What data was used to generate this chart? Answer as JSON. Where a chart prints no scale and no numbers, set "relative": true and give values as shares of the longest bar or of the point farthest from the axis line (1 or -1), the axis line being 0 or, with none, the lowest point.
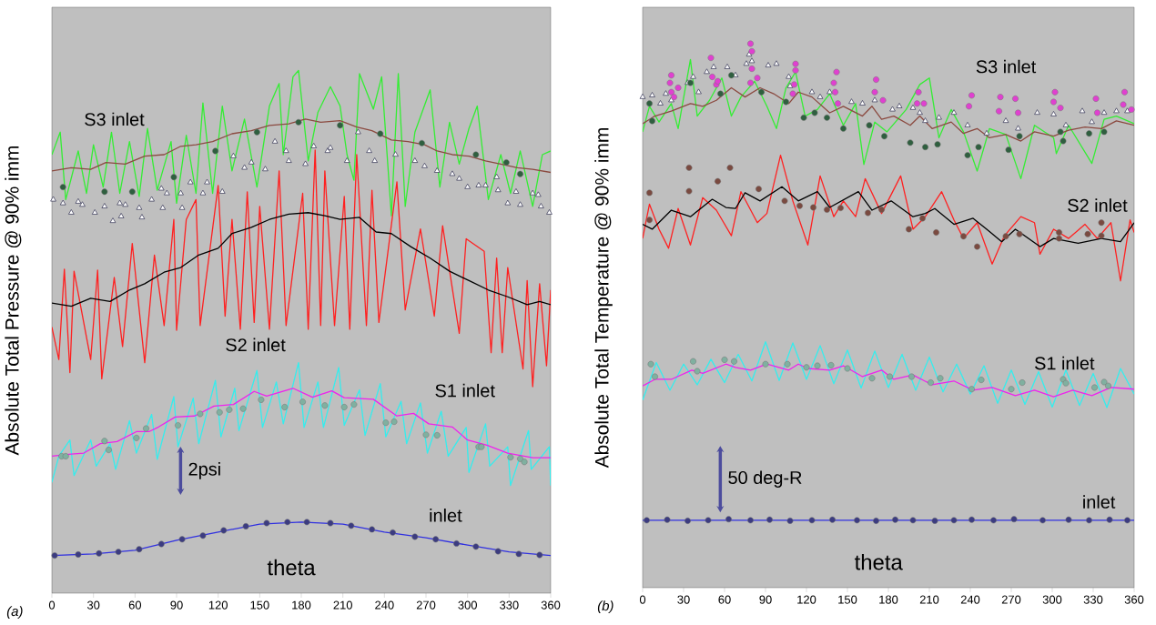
{
  "chart_data": [
    {
      "type": "line",
      "title": "(a)",
      "xlabel": "theta",
      "ylabel": "Absolute Total Pressure  @ 90% imm",
      "relative": true,
      "xlim": [
        0,
        360
      ],
      "xticks": [
        0,
        30,
        60,
        90,
        120,
        150,
        180,
        210,
        240,
        270,
        300,
        330,
        360
      ],
      "annotations": [
        "S3 inlet",
        "S2 inlet",
        "S1 inlet",
        "inlet",
        "2psi"
      ],
      "series": [
        {
          "color": "#33ee33",
          "x": [
            0,
            6,
            10,
            19,
            25,
            30,
            37,
            43,
            49,
            56,
            63,
            69,
            76,
            86,
            90,
            97,
            104,
            109,
            116,
            123,
            130,
            139,
            148,
            157,
            164,
            167,
            174,
            178,
            185,
            192,
            201,
            208,
            213,
            218,
            222,
            232,
            238,
            245,
            250,
            255,
            262,
            273,
            280,
            287,
            294,
            301,
            307,
            315,
            324,
            331,
            338,
            347,
            354,
            360
          ],
          "values": [
            0.839,
            0.882,
            0.753,
            0.846,
            0.765,
            0.858,
            0.777,
            0.882,
            0.765,
            0.864,
            0.759,
            0.889,
            0.771,
            0.864,
            0.746,
            0.876,
            0.765,
            0.938,
            0.765,
            0.932,
            0.808,
            0.907,
            0.777,
            0.932,
            0.975,
            0.839,
            0.988,
            1.0,
            0.827,
            0.92,
            0.969,
            0.932,
            0.839,
            0.79,
            0.994,
            0.926,
            0.988,
            0.722,
            0.994,
            0.74,
            0.882,
            0.963,
            0.777,
            0.901,
            0.821,
            0.889,
            0.932,
            0.753,
            0.839,
            0.765,
            0.846,
            0.74,
            0.839,
            0.846
          ]
        },
        {
          "color": "#8b4a40",
          "x": [
            0,
            14,
            28,
            39,
            53,
            67,
            81,
            93,
            104,
            116,
            130,
            144,
            157,
            171,
            183,
            194,
            208,
            220,
            231,
            245,
            257,
            269,
            278,
            289,
            301,
            313,
            324,
            336,
            347,
            360
          ],
          "values": [
            0.808,
            0.814,
            0.811,
            0.824,
            0.821,
            0.836,
            0.839,
            0.855,
            0.858,
            0.864,
            0.879,
            0.885,
            0.895,
            0.898,
            0.907,
            0.901,
            0.904,
            0.892,
            0.885,
            0.867,
            0.864,
            0.858,
            0.846,
            0.839,
            0.836,
            0.827,
            0.821,
            0.814,
            0.811,
            0.805
          ]
        },
        {
          "type": "scatter",
          "marker": "triangle",
          "color": "#303050",
          "x": [
            1,
            8,
            14,
            19,
            22,
            31,
            38,
            44,
            49,
            50,
            53,
            63,
            65,
            72,
            79,
            80,
            83,
            93,
            94,
            100,
            109,
            112,
            123,
            131,
            139,
            144,
            154,
            161,
            169,
            171,
            183,
            189,
            199,
            201,
            213,
            221,
            229,
            233,
            248,
            262,
            269,
            278,
            289,
            294,
            300,
            308,
            313,
            321,
            322,
            329,
            335,
            338,
            347,
            351,
            353,
            359
          ],
          "values": [
            0.753,
            0.746,
            0.728,
            0.749,
            0.743,
            0.728,
            0.74,
            0.712,
            0.746,
            0.721,
            0.743,
            0.737,
            0.719,
            0.753,
            0.774,
            0.737,
            0.765,
            0.765,
            0.737,
            0.786,
            0.765,
            0.786,
            0.768,
            0.836,
            0.814,
            0.824,
            0.811,
            0.864,
            0.846,
            0.827,
            0.821,
            0.855,
            0.846,
            0.852,
            0.827,
            0.882,
            0.846,
            0.827,
            0.839,
            0.827,
            0.817,
            0.808,
            0.802,
            0.793,
            0.777,
            0.78,
            0.78,
            0.796,
            0.771,
            0.746,
            0.768,
            0.743,
            0.765,
            0.762,
            0.74,
            0.728
          ]
        },
        {
          "type": "scatter",
          "marker": "circle",
          "color": "#2f5f3f",
          "x": [
            8,
            38,
            58,
            88,
            118,
            148,
            178,
            208,
            237,
            267,
            306,
            328,
            338
          ],
          "values": [
            0.777,
            0.768,
            0.768,
            0.796,
            0.846,
            0.882,
            0.901,
            0.895,
            0.879,
            0.861,
            0.839,
            0.824,
            0.802
          ]
        },
        {
          "color": "#ff2020",
          "x": [
            0,
            5,
            9,
            13,
            16,
            28,
            33,
            36,
            45,
            51,
            58,
            67,
            74,
            81,
            88,
            90,
            97,
            104,
            107,
            120,
            125,
            130,
            136,
            141,
            146,
            150,
            157,
            164,
            169,
            181,
            185,
            190,
            194,
            197,
            204,
            211,
            215,
            220,
            227,
            231,
            236,
            249,
            255,
            266,
            276,
            282,
            294,
            299,
            312,
            317,
            321,
            325,
            329,
            340,
            343,
            347,
            352,
            357,
            360
          ],
          "values": [
            0.509,
            0.447,
            0.62,
            0.422,
            0.616,
            0.447,
            0.618,
            0.41,
            0.604,
            0.472,
            0.669,
            0.441,
            0.647,
            0.512,
            0.715,
            0.503,
            0.715,
            0.753,
            0.512,
            0.78,
            0.53,
            0.715,
            0.505,
            0.768,
            0.518,
            0.74,
            0.505,
            0.808,
            0.512,
            0.765,
            0.505,
            0.848,
            0.512,
            0.808,
            0.512,
            0.759,
            0.505,
            0.839,
            0.512,
            0.771,
            0.518,
            0.787,
            0.542,
            0.697,
            0.53,
            0.703,
            0.497,
            0.678,
            0.654,
            0.46,
            0.641,
            0.46,
            0.623,
            0.429,
            0.598,
            0.395,
            0.592,
            0.435,
            0.58
          ]
        },
        {
          "color": "#000000",
          "x": [
            0,
            14,
            28,
            42,
            56,
            67,
            81,
            93,
            106,
            120,
            130,
            144,
            157,
            171,
            185,
            197,
            208,
            222,
            234,
            245,
            259,
            273,
            287,
            301,
            315,
            329,
            343,
            352,
            360
          ],
          "values": [
            0.555,
            0.549,
            0.564,
            0.558,
            0.58,
            0.592,
            0.614,
            0.623,
            0.647,
            0.66,
            0.688,
            0.7,
            0.715,
            0.725,
            0.728,
            0.722,
            0.715,
            0.719,
            0.691,
            0.688,
            0.663,
            0.641,
            0.616,
            0.598,
            0.58,
            0.567,
            0.552,
            0.558,
            0.552
          ]
        },
        {
          "color": "#33eeee",
          "x": [
            0,
            5,
            13,
            16,
            28,
            32,
            42,
            46,
            56,
            61,
            72,
            76,
            88,
            91,
            102,
            106,
            118,
            122,
            132,
            135,
            148,
            152,
            162,
            167,
            178,
            182,
            192,
            196,
            207,
            211,
            222,
            226,
            237,
            241,
            252,
            256,
            266,
            271,
            281,
            286,
            299,
            301,
            313,
            316,
            329,
            331,
            344,
            346,
            359,
            360
          ],
          "values": [
            0.212,
            0.262,
            0.293,
            0.225,
            0.293,
            0.243,
            0.286,
            0.237,
            0.33,
            0.268,
            0.342,
            0.256,
            0.376,
            0.28,
            0.373,
            0.286,
            0.407,
            0.299,
            0.392,
            0.311,
            0.426,
            0.317,
            0.404,
            0.324,
            0.441,
            0.317,
            0.404,
            0.317,
            0.432,
            0.321,
            0.389,
            0.302,
            0.401,
            0.299,
            0.367,
            0.286,
            0.364,
            0.268,
            0.348,
            0.262,
            0.317,
            0.231,
            0.324,
            0.243,
            0.28,
            0.206,
            0.311,
            0.237,
            0.28,
            0.206
          ]
        },
        {
          "color": "#ee22ee",
          "x": [
            0,
            14,
            23,
            35,
            47,
            61,
            70,
            77,
            89,
            103,
            117,
            131,
            146,
            155,
            174,
            188,
            202,
            211,
            232,
            249,
            261,
            272,
            289,
            300,
            314,
            329,
            347,
            360
          ],
          "values": [
            0.262,
            0.266,
            0.268,
            0.286,
            0.29,
            0.309,
            0.309,
            0.318,
            0.337,
            0.339,
            0.358,
            0.361,
            0.386,
            0.377,
            0.392,
            0.375,
            0.387,
            0.374,
            0.371,
            0.339,
            0.344,
            0.324,
            0.318,
            0.293,
            0.283,
            0.268,
            0.259,
            0.259
          ]
        },
        {
          "type": "scatter",
          "marker": "circle",
          "color": "#80b0a0",
          "x": [
            7,
            10,
            38,
            41,
            61,
            68,
            91,
            107,
            121,
            128,
            138,
            151,
            168,
            181,
            197,
            211,
            218,
            241,
            247,
            270,
            278,
            308,
            310,
            331,
            338,
            341
          ],
          "values": [
            0.262,
            0.262,
            0.291,
            0.274,
            0.297,
            0.315,
            0.321,
            0.343,
            0.346,
            0.351,
            0.353,
            0.37,
            0.356,
            0.366,
            0.359,
            0.356,
            0.361,
            0.326,
            0.328,
            0.303,
            0.302,
            0.28,
            0.28,
            0.26,
            0.257,
            0.251
          ]
        },
        {
          "color": "#3030e0",
          "x": [
            0,
            30,
            60,
            90,
            120,
            150,
            180,
            210,
            240,
            270,
            300,
            330,
            360
          ],
          "values": [
            0.072,
            0.075,
            0.082,
            0.101,
            0.117,
            0.132,
            0.136,
            0.132,
            0.117,
            0.106,
            0.092,
            0.079,
            0.072
          ]
        },
        {
          "type": "scatter",
          "marker": "circle",
          "color": "#3c3c80",
          "x": [
            2,
            19,
            34,
            48,
            63,
            79,
            94,
            109,
            124,
            140,
            155,
            170,
            184,
            201,
            216,
            231,
            246,
            262,
            277,
            292,
            306,
            322,
            337,
            352
          ],
          "values": [
            0.072,
            0.074,
            0.076,
            0.079,
            0.084,
            0.094,
            0.103,
            0.11,
            0.12,
            0.128,
            0.134,
            0.136,
            0.136,
            0.134,
            0.129,
            0.122,
            0.116,
            0.108,
            0.103,
            0.095,
            0.089,
            0.08,
            0.075,
            0.073
          ]
        }
      ]
    },
    {
      "type": "line",
      "title": "(b)",
      "xlabel": "theta",
      "ylabel": "Absolute Total Temperature  @ 90% imm",
      "relative": true,
      "xlim": [
        0,
        360
      ],
      "xticks": [
        0,
        30,
        60,
        90,
        120,
        150,
        180,
        210,
        240,
        270,
        300,
        330,
        360
      ],
      "annotations": [
        "S3 inlet",
        "S2 inlet",
        "S1 inlet",
        "inlet",
        "50 deg-R"
      ],
      "series": [
        {
          "color": "#33ee33",
          "x": [
            0,
            5,
            12,
            21,
            26,
            35,
            40,
            49,
            58,
            65,
            72,
            82,
            91,
            98,
            105,
            112,
            119,
            128,
            137,
            147,
            156,
            162,
            170,
            179,
            193,
            203,
            210,
            217,
            226,
            235,
            245,
            254,
            266,
            277,
            287,
            301,
            303,
            312,
            329,
            338,
            347,
            360
          ],
          "values": [
            0.838,
            0.885,
            0.856,
            0.89,
            0.844,
            0.971,
            0.867,
            0.896,
            0.937,
            0.867,
            0.902,
            0.931,
            0.885,
            0.844,
            0.919,
            0.948,
            0.867,
            0.879,
            0.908,
            0.85,
            0.89,
            0.778,
            0.856,
            0.838,
            0.879,
            0.925,
            0.937,
            0.827,
            0.879,
            0.838,
            0.766,
            0.844,
            0.833,
            0.752,
            0.85,
            0.827,
            0.798,
            0.85,
            0.78,
            0.861,
            0.867,
            0.853
          ]
        },
        {
          "color": "#8b4a40",
          "x": [
            0,
            9,
            21,
            35,
            44,
            54,
            65,
            75,
            86,
            96,
            107,
            114,
            124,
            137,
            147,
            161,
            168,
            175,
            184,
            196,
            203,
            212,
            226,
            235,
            245,
            254,
            266,
            277,
            287,
            301,
            312,
            324,
            336,
            347,
            360
          ],
          "values": [
            0.853,
            0.867,
            0.876,
            0.89,
            0.885,
            0.896,
            0.919,
            0.902,
            0.919,
            0.908,
            0.89,
            0.911,
            0.902,
            0.873,
            0.885,
            0.867,
            0.885,
            0.861,
            0.867,
            0.85,
            0.867,
            0.844,
            0.856,
            0.835,
            0.844,
            0.827,
            0.833,
            0.821,
            0.838,
            0.83,
            0.841,
            0.847,
            0.844,
            0.858,
            0.85
          ]
        },
        {
          "type": "scatter",
          "marker": "triangle",
          "color": "#303050",
          "x": [
            0,
            7,
            13,
            17,
            21,
            33,
            37,
            41,
            47,
            52,
            62,
            68,
            76,
            78,
            80,
            92,
            98,
            107,
            108,
            124,
            130,
            137,
            153,
            161,
            170,
            183,
            188,
            198,
            203,
            207,
            217,
            228,
            238,
            252,
            266,
            275,
            289,
            301,
            310,
            322,
            329,
            338,
            347,
            355
          ],
          "values": [
            0.902,
            0.905,
            0.89,
            0.908,
            0.896,
            0.928,
            0.939,
            0.911,
            0.948,
            0.957,
            0.957,
            0.942,
            0.963,
            0.98,
            0.968,
            0.96,
            0.963,
            0.939,
            0.922,
            0.911,
            0.902,
            0.911,
            0.893,
            0.89,
            0.896,
            0.879,
            0.885,
            0.882,
            0.873,
            0.858,
            0.864,
            0.873,
            0.85,
            0.835,
            0.858,
            0.844,
            0.873,
            0.87,
            0.85,
            0.876,
            0.856,
            0.873,
            0.876,
            0.876
          ]
        },
        {
          "type": "scatter",
          "marker": "circle",
          "color": "#2f5f3f",
          "x": [
            5,
            7,
            35,
            57,
            65,
            87,
            105,
            118,
            126,
            135,
            147,
            166,
            177,
            196,
            207,
            216,
            238,
            246,
            268,
            276,
            306,
            308,
            327,
            338
          ],
          "values": [
            0.89,
            0.858,
            0.928,
            0.908,
            0.942,
            0.911,
            0.893,
            0.864,
            0.873,
            0.864,
            0.844,
            0.85,
            0.83,
            0.818,
            0.81,
            0.815,
            0.795,
            0.81,
            0.805,
            0.83,
            0.838,
            0.821,
            0.835,
            0.838
          ]
        },
        {
          "type": "scatter",
          "marker": "circle",
          "color": "#e040d0",
          "x": [
            20,
            21,
            21,
            23,
            26,
            50,
            51,
            54,
            55,
            79,
            79,
            80,
            80,
            84,
            110,
            111,
            112,
            112,
            140,
            141,
            142,
            143,
            170,
            171,
            176,
            201,
            202,
            206,
            239,
            241,
            261,
            262,
            273,
            275,
            301,
            302,
            306,
            332,
            333,
            352,
            353,
            358
          ],
          "values": [
            0.928,
            0.942,
            0.911,
            0.902,
            0.919,
            0.974,
            0.939,
            0.925,
            0.931,
            0.928,
            1.0,
            0.954,
            0.986,
            0.937,
            0.908,
            0.925,
            0.951,
            0.963,
            0.928,
            0.911,
            0.948,
            0.89,
            0.911,
            0.934,
            0.896,
            0.89,
            0.911,
            0.89,
            0.885,
            0.905,
            0.876,
            0.902,
            0.899,
            0.873,
            0.893,
            0.911,
            0.882,
            0.899,
            0.873,
            0.888,
            0.911,
            0.879
          ]
        },
        {
          "color": "#ff2020",
          "x": [
            0,
            5,
            12,
            19,
            26,
            35,
            44,
            54,
            65,
            72,
            84,
            91,
            101,
            110,
            121,
            130,
            140,
            147,
            156,
            163,
            175,
            189,
            198,
            207,
            219,
            228,
            235,
            245,
            256,
            265,
            277,
            287,
            291,
            301,
            312,
            324,
            333,
            343,
            350,
            357,
            360
          ],
          "values": [
            0.642,
            0.705,
            0.659,
            0.624,
            0.697,
            0.63,
            0.717,
            0.694,
            0.647,
            0.728,
            0.671,
            0.688,
            0.795,
            0.711,
            0.63,
            0.757,
            0.682,
            0.711,
            0.682,
            0.752,
            0.688,
            0.757,
            0.659,
            0.682,
            0.728,
            0.676,
            0.642,
            0.671,
            0.595,
            0.647,
            0.682,
            0.671,
            0.613,
            0.659,
            0.642,
            0.668,
            0.642,
            0.671,
            0.564,
            0.676,
            0.653
          ]
        },
        {
          "color": "#000000",
          "x": [
            0,
            7,
            21,
            35,
            51,
            61,
            68,
            75,
            86,
            102,
            114,
            128,
            137,
            158,
            168,
            182,
            198,
            207,
            214,
            228,
            242,
            252,
            263,
            273,
            291,
            301,
            319,
            336,
            350,
            360
          ],
          "values": [
            0.668,
            0.659,
            0.694,
            0.682,
            0.714,
            0.699,
            0.697,
            0.726,
            0.711,
            0.737,
            0.711,
            0.728,
            0.699,
            0.728,
            0.694,
            0.711,
            0.682,
            0.688,
            0.697,
            0.668,
            0.679,
            0.659,
            0.636,
            0.659,
            0.627,
            0.642,
            0.633,
            0.642,
            0.636,
            0.671
          ]
        },
        {
          "type": "scatter",
          "marker": "circle",
          "color": "#7a4a40",
          "x": [
            5,
            5,
            34,
            34,
            55,
            64,
            85,
            104,
            115,
            125,
            135,
            145,
            165,
            175,
            195,
            205,
            215,
            235,
            245,
            266,
            276,
            305,
            305,
            326,
            336,
            336
          ],
          "values": [
            0.726,
            0.676,
            0.772,
            0.729,
            0.747,
            0.772,
            0.733,
            0.711,
            0.702,
            0.699,
            0.695,
            0.698,
            0.689,
            0.695,
            0.659,
            0.679,
            0.653,
            0.646,
            0.627,
            0.646,
            0.65,
            0.653,
            0.642,
            0.65,
            0.671,
            0.647
          ]
        },
        {
          "color": "#33eeee",
          "x": [
            0,
            10,
            20,
            30,
            40,
            50,
            60,
            70,
            80,
            90,
            100,
            110,
            120,
            130,
            140,
            150,
            160,
            170,
            180,
            190,
            200,
            210,
            220,
            230,
            240,
            250,
            260,
            270,
            280,
            290,
            300,
            310,
            320,
            330,
            340,
            350,
            360
          ],
          "values": [
            0.345,
            0.414,
            0.363,
            0.411,
            0.373,
            0.42,
            0.377,
            0.429,
            0.38,
            0.452,
            0.381,
            0.45,
            0.383,
            0.445,
            0.375,
            0.437,
            0.367,
            0.435,
            0.368,
            0.429,
            0.363,
            0.424,
            0.36,
            0.411,
            0.356,
            0.408,
            0.339,
            0.4,
            0.337,
            0.397,
            0.332,
            0.4,
            0.335,
            0.394,
            0.331,
            0.403,
            0.356
          ]
        },
        {
          "color": "#ee22ee",
          "x": [
            0,
            9,
            21,
            36,
            44,
            61,
            68,
            79,
            91,
            107,
            114,
            121,
            137,
            147,
            161,
            175,
            184,
            198,
            212,
            228,
            242,
            256,
            273,
            287,
            301,
            315,
            329,
            343,
            360
          ],
          "values": [
            0.371,
            0.383,
            0.383,
            0.4,
            0.394,
            0.411,
            0.405,
            0.4,
            0.411,
            0.4,
            0.411,
            0.403,
            0.4,
            0.408,
            0.388,
            0.4,
            0.383,
            0.391,
            0.373,
            0.38,
            0.363,
            0.368,
            0.353,
            0.363,
            0.351,
            0.363,
            0.353,
            0.368,
            0.365
          ]
        },
        {
          "type": "scatter",
          "marker": "circle",
          "color": "#80b0a0",
          "x": [
            6,
            9,
            37,
            40,
            60,
            67,
            90,
            106,
            120,
            128,
            138,
            150,
            168,
            181,
            197,
            211,
            218,
            241,
            248,
            270,
            278,
            308,
            310,
            331,
            338,
            341
          ],
          "values": [
            0.411,
            0.388,
            0.416,
            0.398,
            0.419,
            0.416,
            0.411,
            0.411,
            0.405,
            0.408,
            0.409,
            0.403,
            0.385,
            0.388,
            0.388,
            0.377,
            0.385,
            0.365,
            0.382,
            0.365,
            0.377,
            0.383,
            0.376,
            0.368,
            0.378,
            0.371
          ]
        },
        {
          "color": "#3030e0",
          "x": [
            0,
            180,
            360
          ],
          "values": [
            0.124,
            0.124,
            0.124
          ]
        },
        {
          "type": "scatter",
          "marker": "circle",
          "color": "#3c3c80",
          "x": [
            3,
            18,
            33,
            48,
            63,
            79,
            93,
            108,
            124,
            139,
            157,
            171,
            185,
            198,
            214,
            228,
            241,
            257,
            272,
            293,
            312,
            327,
            342,
            355
          ],
          "values": [
            0.124,
            0.125,
            0.123,
            0.124,
            0.126,
            0.124,
            0.125,
            0.123,
            0.124,
            0.125,
            0.124,
            0.123,
            0.125,
            0.124,
            0.123,
            0.124,
            0.125,
            0.124,
            0.126,
            0.124,
            0.125,
            0.124,
            0.125,
            0.124
          ]
        }
      ]
    }
  ]
}
